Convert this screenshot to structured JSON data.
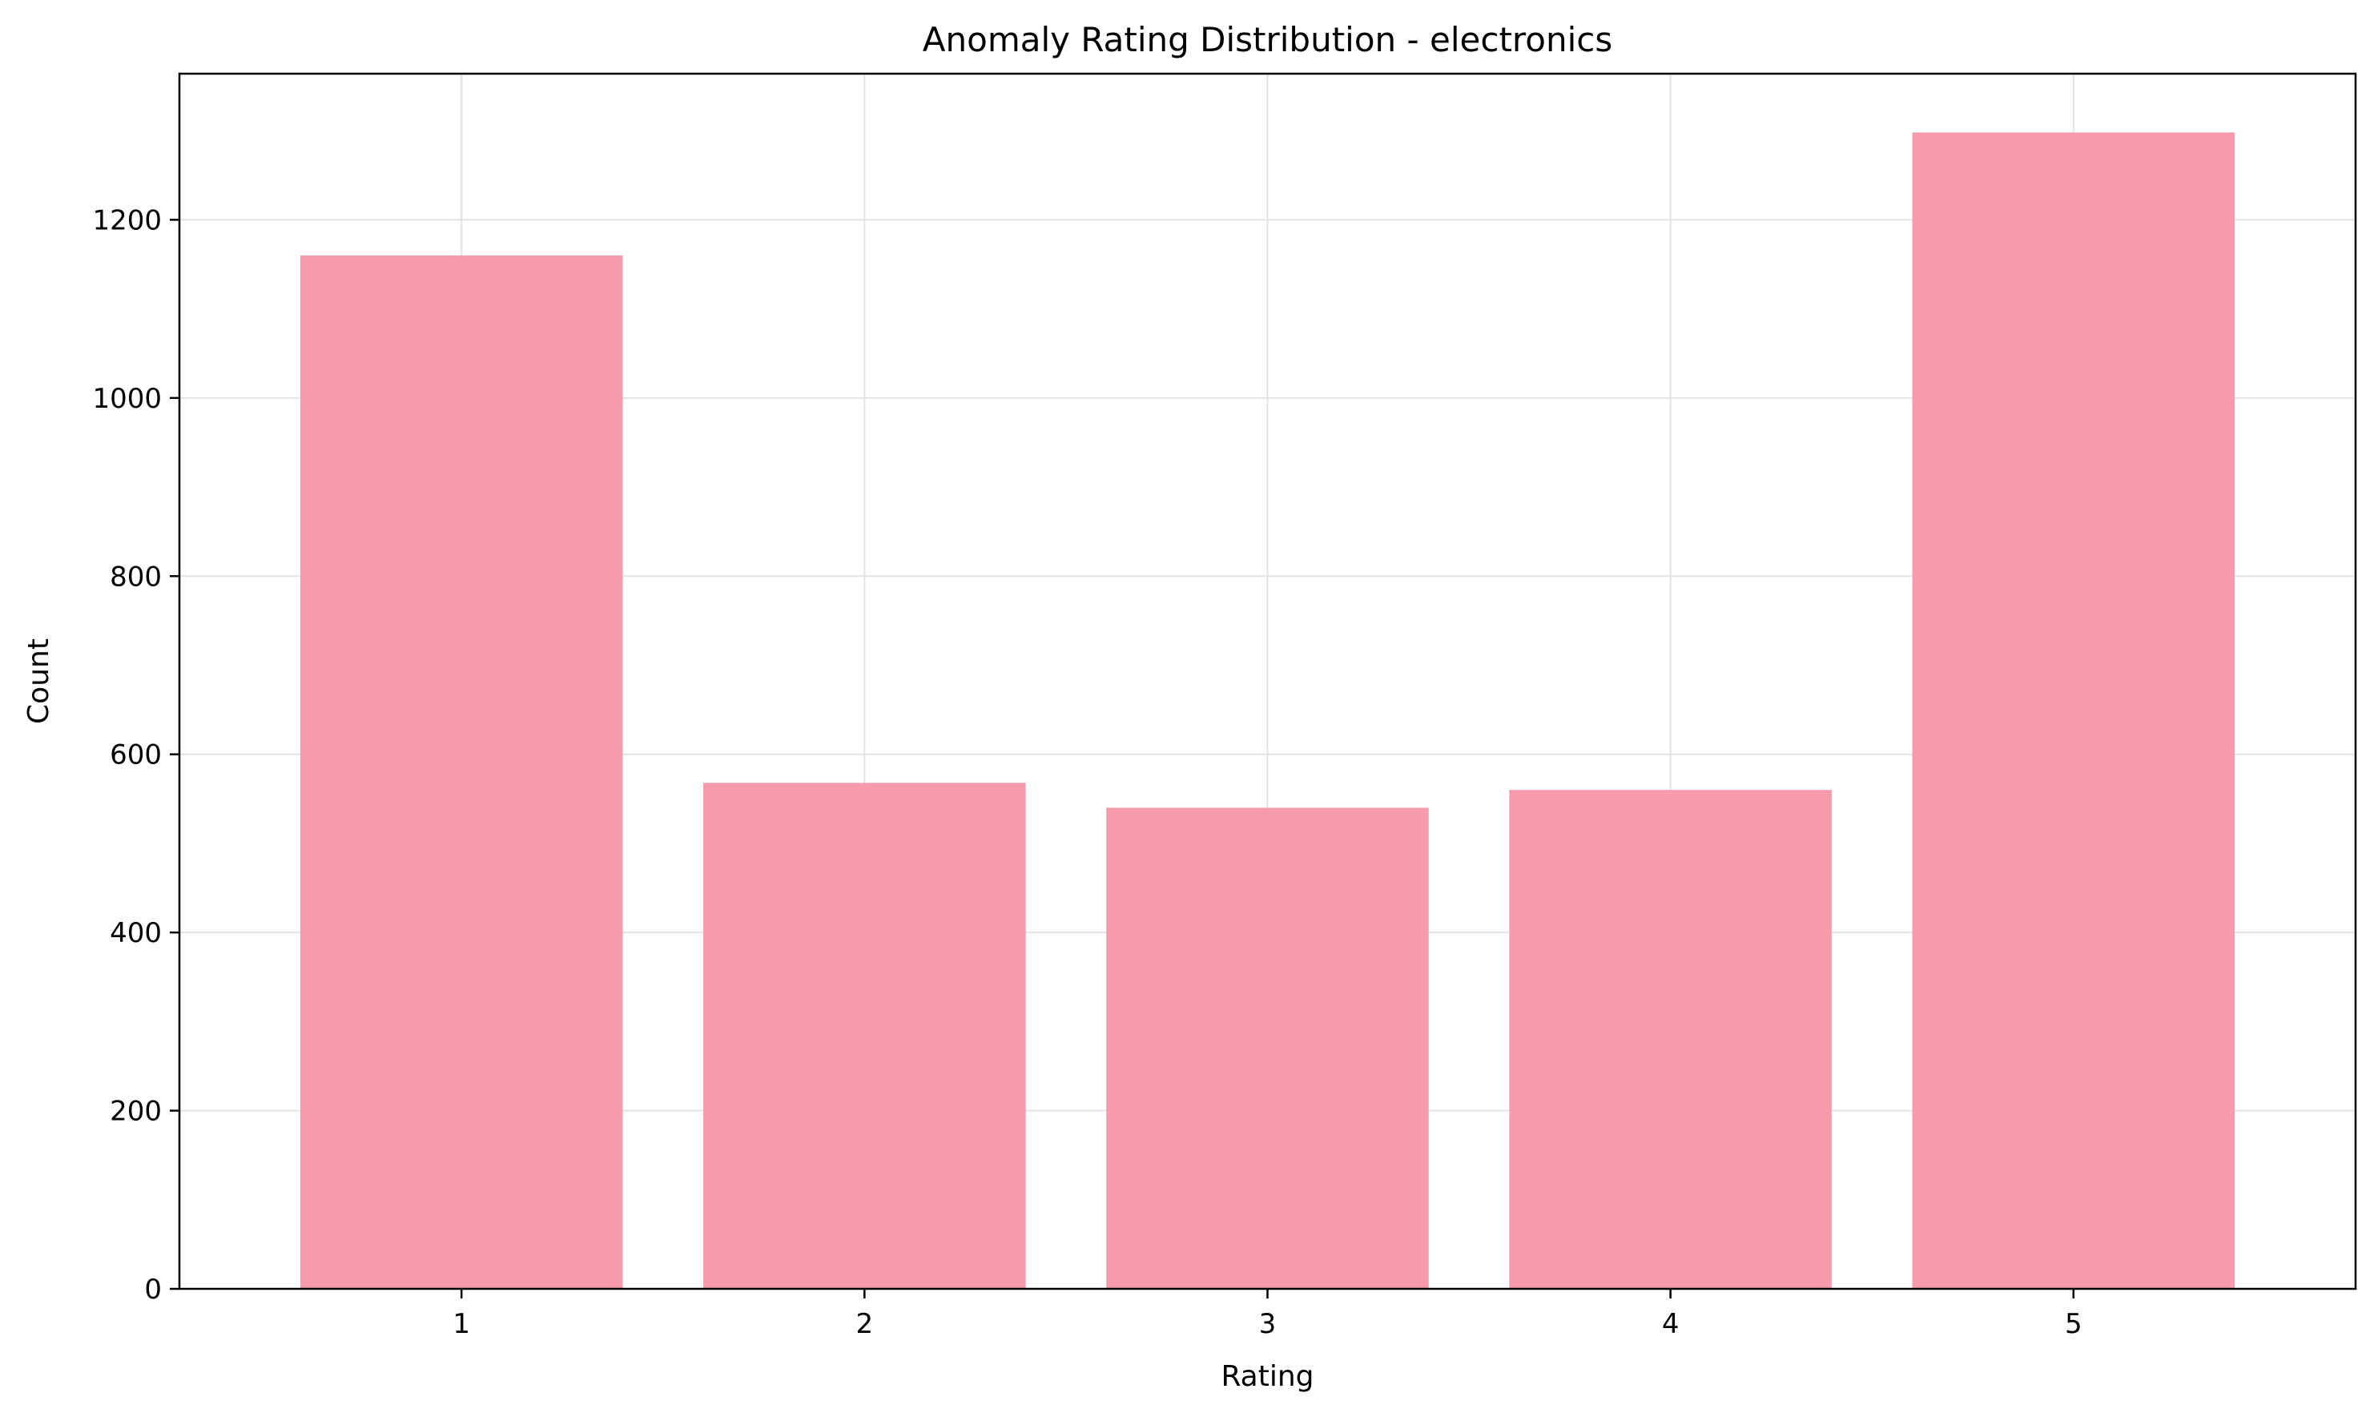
{
  "chart_data": {
    "type": "bar",
    "title": "Anomaly Rating Distribution - electronics",
    "xlabel": "Rating",
    "ylabel": "Count",
    "categories": [
      "1",
      "2",
      "3",
      "4",
      "5"
    ],
    "values": [
      1160,
      568,
      540,
      560,
      1298
    ],
    "ylim": [
      0,
      1364
    ],
    "yticks": [
      0,
      200,
      400,
      600,
      800,
      1000,
      1200
    ],
    "grid": true,
    "bar_color": "#f79aac",
    "grid_color": "#e3e3e3",
    "axis_color": "#000000"
  }
}
